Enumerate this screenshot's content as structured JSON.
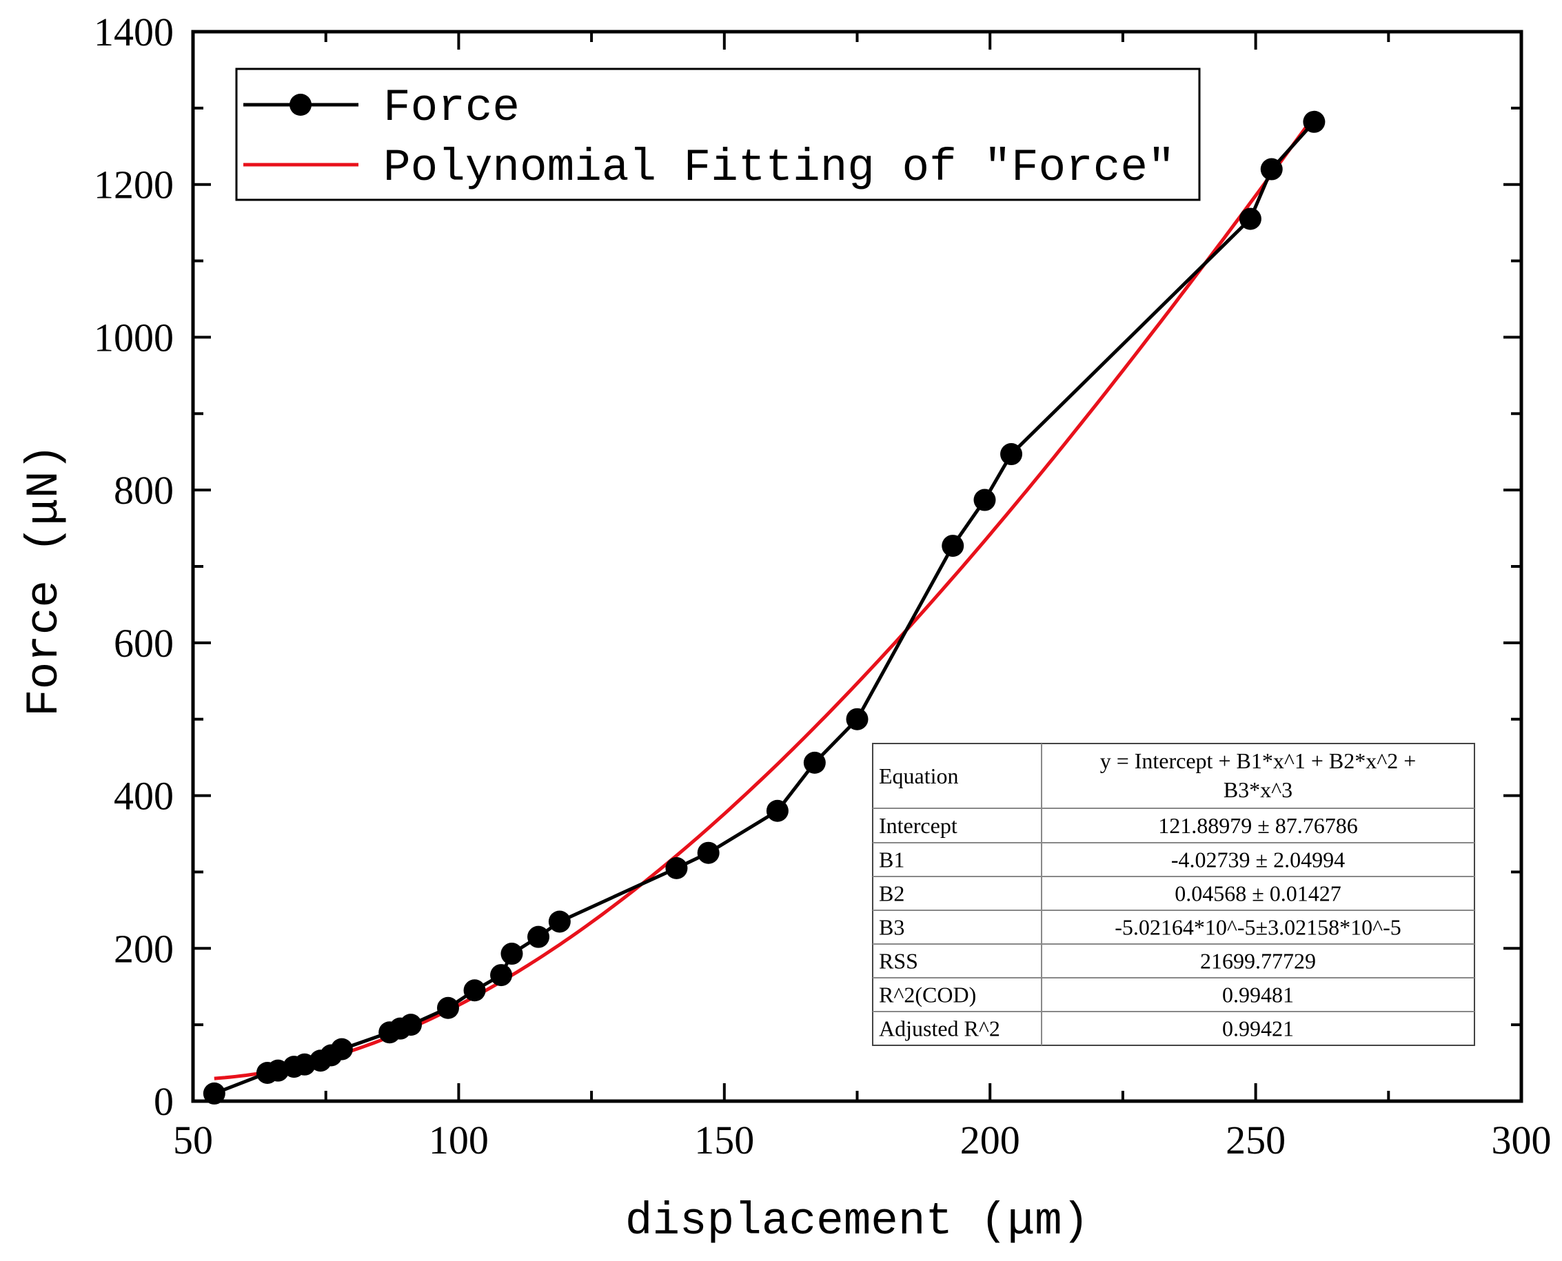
{
  "chart_data": {
    "type": "line",
    "xlabel": "displacement (μm)",
    "ylabel": "Force (μN)",
    "xlim": [
      50,
      300
    ],
    "ylim": [
      0,
      1400
    ],
    "xticks": [
      50,
      100,
      150,
      200,
      250,
      300
    ],
    "yticks": [
      0,
      200,
      400,
      600,
      800,
      1000,
      1200,
      1400
    ],
    "legend": {
      "position": "top-left",
      "entries": [
        "Force",
        "Polynomial Fitting of \"Force\""
      ]
    },
    "series": [
      {
        "name": "Force",
        "color": "#000000",
        "x": [
          54,
          64,
          66,
          69,
          71,
          74,
          76,
          78,
          87,
          89,
          91,
          98,
          103,
          108,
          110,
          115,
          119,
          141,
          147,
          160,
          167,
          175,
          193,
          199,
          204,
          249,
          253,
          261
        ],
        "y": [
          10,
          37,
          40,
          45,
          48,
          53,
          60,
          68,
          90,
          95,
          100,
          122,
          145,
          165,
          193,
          215,
          235,
          305,
          325,
          380,
          443,
          500,
          727,
          787,
          847,
          1155,
          1220,
          1282
        ]
      },
      {
        "name": "Polynomial Fitting of \"Force\"",
        "color": "#e8111b",
        "type": "polynomial",
        "coefficients": [
          121.88979,
          -4.02739,
          0.04568,
          -5.02164e-05
        ],
        "x_range": [
          54,
          261
        ]
      }
    ],
    "stats_table": [
      {
        "label": "Equation",
        "value": "y = Intercept + B1*x^1 + B2*x^2 +",
        "value2": "B3*x^3"
      },
      {
        "label": "Intercept",
        "value": "121.88979 ± 87.76786"
      },
      {
        "label": "B1",
        "value": "-4.02739 ± 2.04994"
      },
      {
        "label": "B2",
        "value": "0.04568 ± 0.01427"
      },
      {
        "label": "B3",
        "value": "-5.02164*10^-5±3.02158*10^-5"
      },
      {
        "label": "RSS",
        "value": "21699.77729"
      },
      {
        "label": "R^2(COD)",
        "value": "0.99481"
      },
      {
        "label": "Adjusted R^2",
        "value": "0.99421"
      }
    ]
  }
}
